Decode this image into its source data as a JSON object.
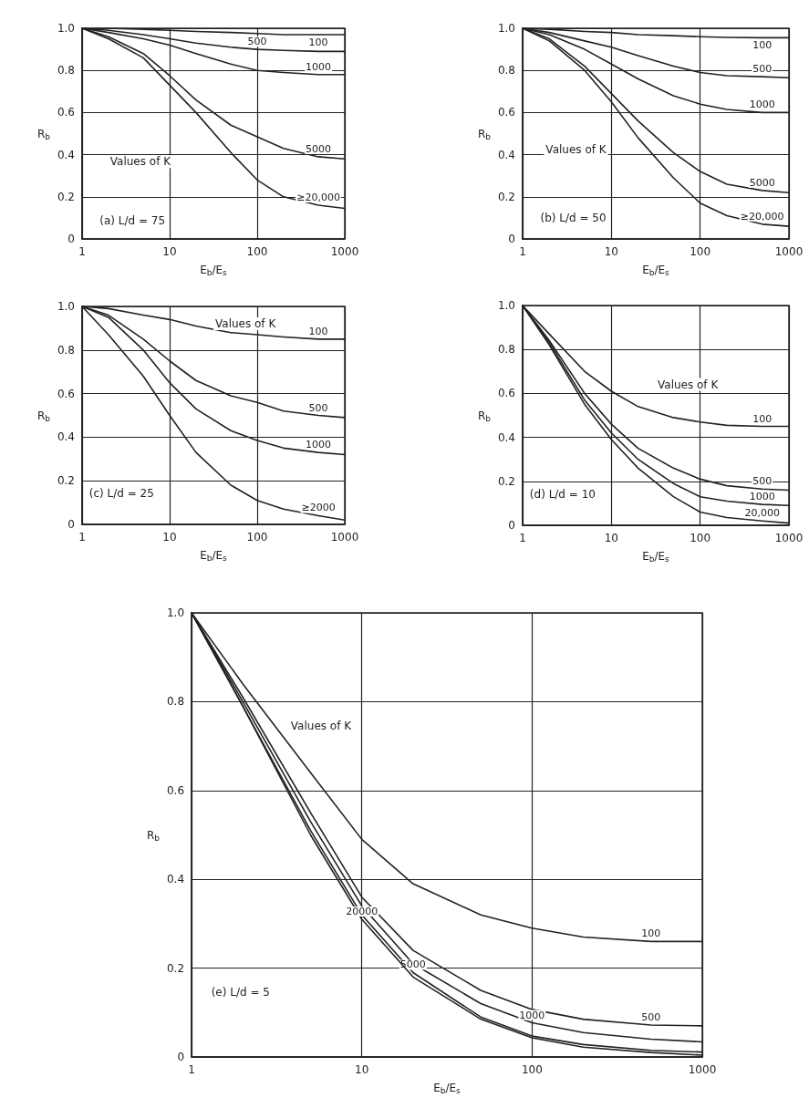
{
  "chart_data": [
    {
      "type": "line",
      "xlabel": "E$_{b}$/E$_{s}$",
      "ylabel": "R$_{b}$",
      "log": "x",
      "grid": true,
      "legend": false,
      "marker": "none",
      "line_style": "solid",
      "annotations": [
        "Values of K",
        "(a) L/d = 75"
      ],
      "x": [
        1,
        2,
        5,
        10,
        20,
        50,
        100,
        200,
        500,
        1000
      ],
      "xlim": [
        1,
        1000
      ],
      "xticks": [
        1,
        10,
        100,
        1000
      ],
      "ylim": [
        0,
        1
      ],
      "yticks": [
        {
          "value": 0,
          "label": "0"
        },
        {
          "value": 0.2,
          "label": "0.2"
        },
        {
          "value": 0.4,
          "label": "0.4"
        },
        {
          "value": 0.6,
          "label": "0.6"
        },
        {
          "value": 0.8,
          "label": "0.8"
        },
        {
          "value": 1,
          "label": "1.0"
        }
      ],
      "series": [
        {
          "name": "100",
          "color": "#222222",
          "values": [
            1,
            1,
            0.995,
            0.99,
            0.985,
            0.98,
            0.975,
            0.97,
            0.97,
            0.97
          ]
        },
        {
          "name": "500",
          "color": "#222222",
          "values": [
            1,
            0.99,
            0.97,
            0.95,
            0.93,
            0.91,
            0.9,
            0.895,
            0.89,
            0.89
          ]
        },
        {
          "name": "1000",
          "color": "#222222",
          "values": [
            1,
            0.98,
            0.95,
            0.92,
            0.88,
            0.83,
            0.8,
            0.79,
            0.78,
            0.78
          ]
        },
        {
          "name": "5000",
          "color": "#222222",
          "values": [
            1,
            0.96,
            0.88,
            0.775,
            0.66,
            0.54,
            0.485,
            0.43,
            0.39,
            0.38
          ]
        },
        {
          "name": "≥20,000",
          "color": "#222222",
          "values": [
            1,
            0.95,
            0.86,
            0.73,
            0.6,
            0.41,
            0.28,
            0.2,
            0.16,
            0.145
          ]
        }
      ]
    },
    {
      "type": "line",
      "xlabel": "E$_{b}$/E$_{s}$",
      "ylabel": "R$_{b}$",
      "log": "x",
      "grid": true,
      "legend": false,
      "marker": "none",
      "line_style": "solid",
      "annotations": [
        "Values of K",
        "(b) L/d = 50"
      ],
      "x": [
        1,
        2,
        5,
        10,
        20,
        50,
        100,
        200,
        500,
        1000
      ],
      "xlim": [
        1,
        1000
      ],
      "xticks": [
        1,
        10,
        100,
        1000
      ],
      "ylim": [
        0,
        1
      ],
      "yticks": [
        {
          "value": 0,
          "label": "0"
        },
        {
          "value": 0.2,
          "label": "0.2"
        },
        {
          "value": 0.4,
          "label": "0.4"
        },
        {
          "value": 0.6,
          "label": "0.6"
        },
        {
          "value": 0.8,
          "label": "0.8"
        },
        {
          "value": 1,
          "label": "1.0"
        }
      ],
      "series": [
        {
          "name": "100",
          "color": "#222222",
          "values": [
            1,
            0.995,
            0.985,
            0.98,
            0.97,
            0.965,
            0.96,
            0.957,
            0.955,
            0.955
          ]
        },
        {
          "name": "500",
          "color": "#222222",
          "values": [
            1,
            0.98,
            0.94,
            0.91,
            0.87,
            0.82,
            0.79,
            0.775,
            0.77,
            0.765
          ]
        },
        {
          "name": "1000",
          "color": "#222222",
          "values": [
            1,
            0.97,
            0.9,
            0.83,
            0.76,
            0.68,
            0.64,
            0.615,
            0.6,
            0.6
          ]
        },
        {
          "name": "5000",
          "color": "#222222",
          "values": [
            1,
            0.95,
            0.82,
            0.69,
            0.56,
            0.41,
            0.32,
            0.26,
            0.23,
            0.22
          ]
        },
        {
          "name": "≥20,000",
          "color": "#222222",
          "values": [
            1,
            0.94,
            0.8,
            0.65,
            0.48,
            0.29,
            0.17,
            0.11,
            0.07,
            0.06
          ]
        }
      ]
    },
    {
      "type": "line",
      "xlabel": "E$_{b}$/E$_{s}$",
      "ylabel": "R$_{b}$",
      "log": "x",
      "grid": true,
      "legend": false,
      "marker": "none",
      "line_style": "solid",
      "annotations": [
        "Values of K",
        "(c) L/d = 25"
      ],
      "x": [
        1,
        2,
        5,
        10,
        20,
        50,
        100,
        200,
        500,
        1000
      ],
      "xlim": [
        1,
        1000
      ],
      "xticks": [
        1,
        10,
        100,
        1000
      ],
      "ylim": [
        0,
        1
      ],
      "yticks": [
        {
          "value": 0,
          "label": "0"
        },
        {
          "value": 0.2,
          "label": "0.2"
        },
        {
          "value": 0.4,
          "label": "0.4"
        },
        {
          "value": 0.6,
          "label": "0.6"
        },
        {
          "value": 0.8,
          "label": "0.8"
        },
        {
          "value": 1,
          "label": "1.0"
        }
      ],
      "series": [
        {
          "name": "100",
          "color": "#222222",
          "values": [
            1,
            0.99,
            0.96,
            0.94,
            0.91,
            0.88,
            0.87,
            0.86,
            0.85,
            0.85
          ]
        },
        {
          "name": "500",
          "color": "#222222",
          "values": [
            1,
            0.96,
            0.85,
            0.75,
            0.66,
            0.59,
            0.56,
            0.52,
            0.5,
            0.49
          ]
        },
        {
          "name": "1000",
          "color": "#222222",
          "values": [
            1,
            0.95,
            0.8,
            0.65,
            0.53,
            0.43,
            0.385,
            0.35,
            0.33,
            0.32
          ]
        },
        {
          "name": "≥2000",
          "color": "#222222",
          "values": [
            1,
            0.87,
            0.68,
            0.5,
            0.33,
            0.18,
            0.11,
            0.07,
            0.04,
            0.02
          ]
        }
      ]
    },
    {
      "type": "line",
      "xlabel": "E$_{b}$/E$_{s}$",
      "ylabel": "R$_{b}$",
      "log": "x",
      "grid": true,
      "legend": false,
      "marker": "none",
      "line_style": "solid",
      "annotations": [
        "Values of K",
        "(d) L/d = 10"
      ],
      "x": [
        1,
        2,
        5,
        10,
        20,
        50,
        100,
        200,
        500,
        1000
      ],
      "xlim": [
        1,
        1000
      ],
      "xticks": [
        1,
        10,
        100,
        1000
      ],
      "ylim": [
        0,
        1
      ],
      "yticks": [
        {
          "value": 0,
          "label": "0"
        },
        {
          "value": 0.2,
          "label": "0.2"
        },
        {
          "value": 0.4,
          "label": "0.4"
        },
        {
          "value": 0.6,
          "label": "0.6"
        },
        {
          "value": 0.8,
          "label": "0.8"
        },
        {
          "value": 1,
          "label": "1.0"
        }
      ],
      "series": [
        {
          "name": "100",
          "color": "#222222",
          "values": [
            1,
            0.87,
            0.7,
            0.61,
            0.54,
            0.49,
            0.47,
            0.455,
            0.45,
            0.45
          ]
        },
        {
          "name": "500",
          "color": "#222222",
          "values": [
            1,
            0.84,
            0.6,
            0.46,
            0.35,
            0.26,
            0.21,
            0.18,
            0.165,
            0.16
          ]
        },
        {
          "name": "1000",
          "color": "#222222",
          "values": [
            1,
            0.83,
            0.57,
            0.42,
            0.3,
            0.19,
            0.13,
            0.11,
            0.095,
            0.09
          ]
        },
        {
          "name": "20,000",
          "color": "#222222",
          "values": [
            1,
            0.82,
            0.55,
            0.39,
            0.26,
            0.13,
            0.06,
            0.035,
            0.02,
            0.01
          ]
        }
      ]
    },
    {
      "type": "line",
      "xlabel": "E$_{b}$/E$_{s}$",
      "ylabel": "R$_{b}$",
      "log": "x",
      "grid": true,
      "legend": false,
      "marker": "none",
      "line_style": "solid",
      "annotations": [
        "Values of K",
        "(e) L/d = 5"
      ],
      "x": [
        1,
        2,
        5,
        10,
        20,
        50,
        100,
        200,
        500,
        1000
      ],
      "xlim": [
        1,
        1000
      ],
      "xticks": [
        1,
        10,
        100,
        1000
      ],
      "ylim": [
        0,
        1
      ],
      "yticks": [
        {
          "value": 0,
          "label": "0"
        },
        {
          "value": 0.2,
          "label": "0.2"
        },
        {
          "value": 0.4,
          "label": "0.4"
        },
        {
          "value": 0.6,
          "label": "0.6"
        },
        {
          "value": 0.8,
          "label": "0.8"
        },
        {
          "value": 1,
          "label": "1.0"
        }
      ],
      "series": [
        {
          "name": "100",
          "color": "#222222",
          "values": [
            1,
            0.84,
            0.64,
            0.49,
            0.39,
            0.32,
            0.29,
            0.27,
            0.26,
            0.26
          ]
        },
        {
          "name": "500",
          "color": "#222222",
          "values": [
            1,
            0.81,
            0.55,
            0.36,
            0.24,
            0.15,
            0.107,
            0.085,
            0.072,
            0.07
          ]
        },
        {
          "name": "1000",
          "color": "#222222",
          "values": [
            1,
            0.8,
            0.53,
            0.34,
            0.21,
            0.12,
            0.077,
            0.055,
            0.04,
            0.034
          ]
        },
        {
          "name": "5000",
          "color": "#222222",
          "values": [
            1,
            0.79,
            0.51,
            0.32,
            0.19,
            0.09,
            0.047,
            0.028,
            0.015,
            0.011
          ]
        },
        {
          "name": "20000",
          "color": "#222222",
          "values": [
            1,
            0.79,
            0.5,
            0.31,
            0.18,
            0.085,
            0.043,
            0.022,
            0.01,
            0.004
          ]
        }
      ]
    }
  ]
}
